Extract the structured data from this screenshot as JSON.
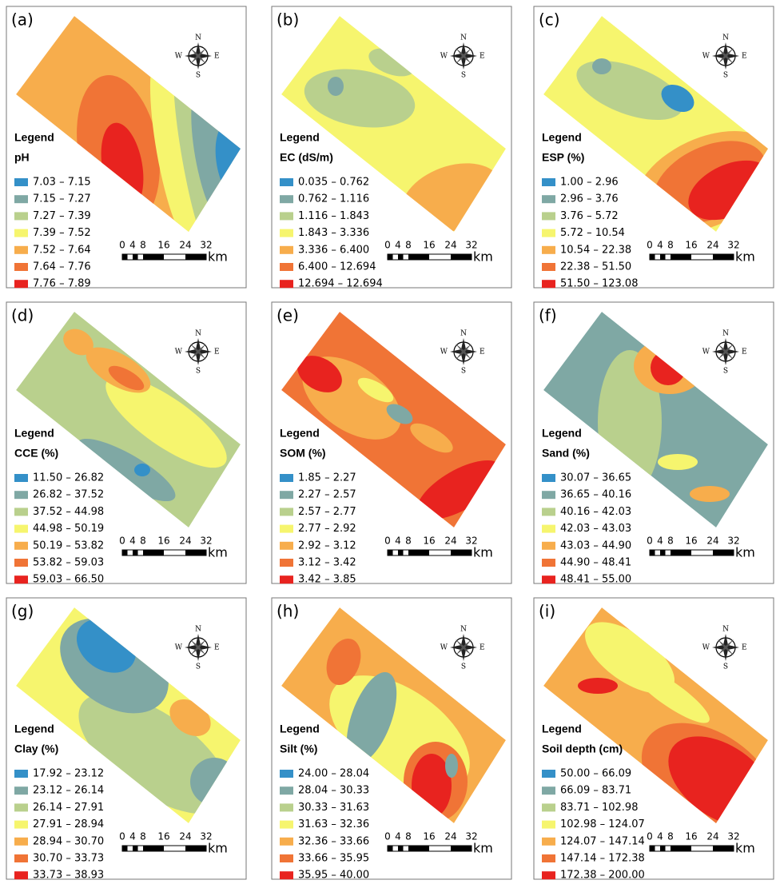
{
  "legend_heading": "Legend",
  "compass": {
    "n": "N",
    "s": "S",
    "e": "E",
    "w": "W"
  },
  "scale_bar": {
    "labels": [
      "0",
      "4",
      "8",
      "16",
      "24",
      "32"
    ],
    "unit": "km"
  },
  "class_colors": [
    "#3490c8",
    "#7fa8a4",
    "#b9d08d",
    "#f6f56e",
    "#f7ad4c",
    "#f07436",
    "#e8231f"
  ],
  "panels": [
    {
      "label": "(a)",
      "legend_title": "pH",
      "classes": [
        "7.03 – 7.15",
        "7.15 – 7.27",
        "7.27 – 7.39",
        "7.39 – 7.52",
        "7.52 – 7.64",
        "7.64 – 7.76",
        "7.76 – 7.89"
      ]
    },
    {
      "label": "(b)",
      "legend_title": "EC (dS/m)",
      "classes": [
        "0.035 – 0.762",
        "0.762 – 1.116",
        "1.116 – 1.843",
        "1.843 – 3.336",
        "3.336 – 6.400",
        "6.400 – 12.694",
        "12.694 – 12.694"
      ]
    },
    {
      "label": "(c)",
      "legend_title": "ESP (%)",
      "classes": [
        "1.00 – 2.96",
        "2.96 – 3.76",
        "3.76 – 5.72",
        "5.72 – 10.54",
        "10.54 – 22.38",
        "22.38 – 51.50",
        "51.50 – 123.08"
      ]
    },
    {
      "label": "(d)",
      "legend_title": "CCE (%)",
      "classes": [
        "11.50 – 26.82",
        "26.82 – 37.52",
        "37.52 – 44.98",
        "44.98 – 50.19",
        "50.19 – 53.82",
        "53.82 – 59.03",
        "59.03 – 66.50"
      ]
    },
    {
      "label": "(e)",
      "legend_title": "SOM (%)",
      "classes": [
        "1.85 – 2.27",
        "2.27 – 2.57",
        "2.57 – 2.77",
        "2.77 – 2.92",
        "2.92 – 3.12",
        "3.12 – 3.42",
        "3.42 – 3.85"
      ]
    },
    {
      "label": "(f)",
      "legend_title": "Sand (%)",
      "classes": [
        "30.07 – 36.65",
        "36.65 – 40.16",
        "40.16 – 42.03",
        "42.03 – 43.03",
        "43.03 – 44.90",
        "44.90 – 48.41",
        "48.41 – 55.00"
      ]
    },
    {
      "label": "(g)",
      "legend_title": "Clay (%)",
      "classes": [
        "17.92 – 23.12",
        "23.12 – 26.14",
        "26.14 – 27.91",
        "27.91 – 28.94",
        "28.94 – 30.70",
        "30.70 – 33.73",
        "33.73 – 38.93"
      ]
    },
    {
      "label": "(h)",
      "legend_title": "Silt (%)",
      "classes": [
        "24.00 – 28.04",
        "28.04 – 30.33",
        "30.33 – 31.63",
        "31.63 – 32.36",
        "32.36 – 33.66",
        "33.66 – 35.95",
        "35.95 – 40.00"
      ]
    },
    {
      "label": "(i)",
      "legend_title": "Soil depth (cm)",
      "classes": [
        "50.00 – 66.09",
        "66.09 – 83.71",
        "83.71 – 102.98",
        "102.98 – 124.07",
        "124.07 – 147.14",
        "147.14 – 172.38",
        "172.38 – 200.00"
      ]
    }
  ]
}
